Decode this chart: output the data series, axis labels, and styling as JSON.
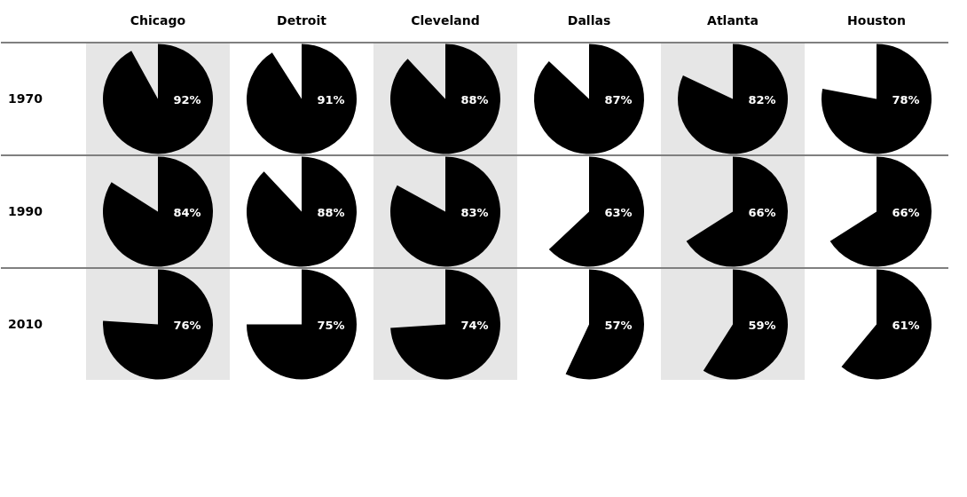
{
  "chart_data": [
    {
      "type": "pie",
      "title": "Chicago",
      "ylabel": "1970",
      "categories": [
        null
      ],
      "values": [
        92
      ],
      "colors": [
        "#000000"
      ],
      "value_labels": [
        "92%"
      ]
    },
    {
      "type": "pie",
      "title": "Detroit",
      "categories": [
        null
      ],
      "values": [
        91
      ],
      "colors": [
        "#000000"
      ],
      "value_labels": [
        "91%"
      ]
    },
    {
      "type": "pie",
      "title": "Cleveland",
      "categories": [
        null
      ],
      "values": [
        88
      ],
      "colors": [
        "#000000"
      ],
      "value_labels": [
        "88%"
      ]
    },
    {
      "type": "pie",
      "title": "Dallas",
      "categories": [
        null
      ],
      "values": [
        87
      ],
      "colors": [
        "#000000"
      ],
      "value_labels": [
        "87%"
      ]
    },
    {
      "type": "pie",
      "title": "Atlanta",
      "categories": [
        null
      ],
      "values": [
        82
      ],
      "colors": [
        "#000000"
      ],
      "value_labels": [
        "82%"
      ]
    },
    {
      "type": "pie",
      "title": "Houston",
      "categories": [
        null
      ],
      "values": [
        78
      ],
      "colors": [
        "#000000"
      ],
      "value_labels": [
        "78%"
      ]
    },
    {
      "type": "pie",
      "ylabel": "1990",
      "categories": [
        null
      ],
      "values": [
        84
      ],
      "colors": [
        "#000000"
      ],
      "value_labels": [
        "84%"
      ]
    },
    {
      "type": "pie",
      "categories": [
        null
      ],
      "values": [
        88
      ],
      "colors": [
        "#000000"
      ],
      "value_labels": [
        "88%"
      ]
    },
    {
      "type": "pie",
      "categories": [
        null
      ],
      "values": [
        83
      ],
      "colors": [
        "#000000"
      ],
      "value_labels": [
        "83%"
      ]
    },
    {
      "type": "pie",
      "categories": [
        null
      ],
      "values": [
        63
      ],
      "colors": [
        "#000000"
      ],
      "value_labels": [
        "63%"
      ]
    },
    {
      "type": "pie",
      "categories": [
        null
      ],
      "values": [
        66
      ],
      "colors": [
        "#000000"
      ],
      "value_labels": [
        "66%"
      ]
    },
    {
      "type": "pie",
      "categories": [
        null
      ],
      "values": [
        66
      ],
      "colors": [
        "#000000"
      ],
      "value_labels": [
        "66%"
      ]
    },
    {
      "type": "pie",
      "ylabel": "2010",
      "categories": [
        null
      ],
      "values": [
        76
      ],
      "colors": [
        "#000000"
      ],
      "value_labels": [
        "76%"
      ]
    },
    {
      "type": "pie",
      "categories": [
        null
      ],
      "values": [
        75
      ],
      "colors": [
        "#000000"
      ],
      "value_labels": [
        "75%"
      ]
    },
    {
      "type": "pie",
      "categories": [
        null
      ],
      "values": [
        74
      ],
      "colors": [
        "#000000"
      ],
      "value_labels": [
        "74%"
      ]
    },
    {
      "type": "pie",
      "categories": [
        null
      ],
      "values": [
        57
      ],
      "colors": [
        "#000000"
      ],
      "value_labels": [
        "57%"
      ]
    },
    {
      "type": "pie",
      "categories": [
        null
      ],
      "values": [
        59
      ],
      "colors": [
        "#000000"
      ],
      "value_labels": [
        "59%"
      ]
    },
    {
      "type": "pie",
      "categories": [
        null
      ],
      "values": [
        61
      ],
      "colors": [
        "#000000"
      ],
      "value_labels": [
        "61%"
      ]
    }
  ]
}
